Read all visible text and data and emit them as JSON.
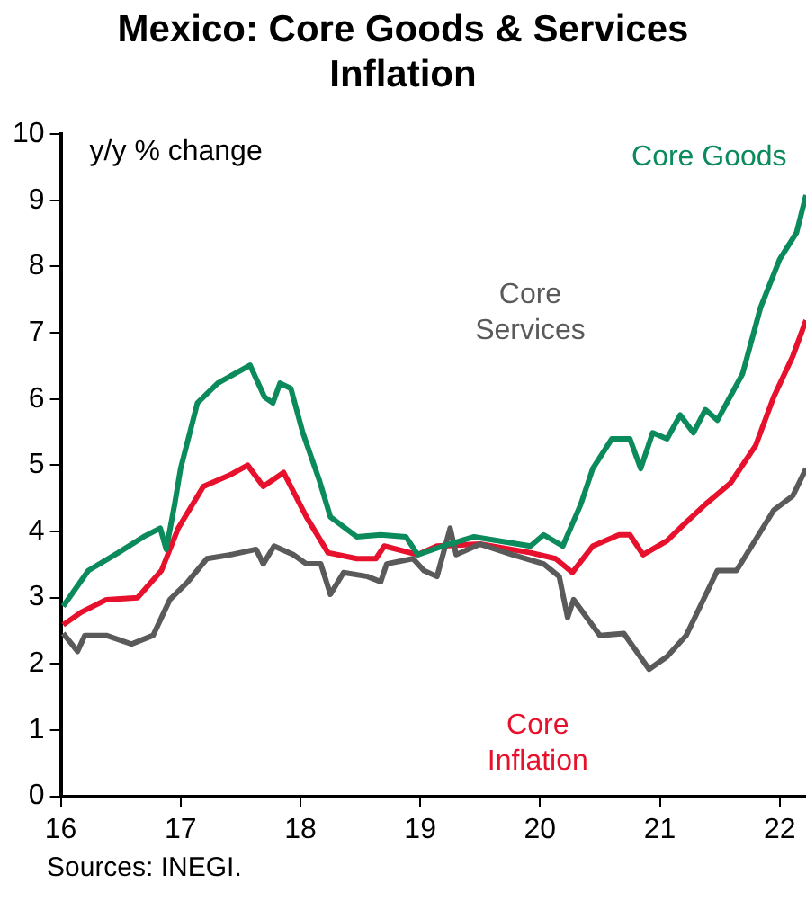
{
  "chart_data": {
    "type": "line",
    "title": "Mexico: Core Goods & Services Inflation",
    "ylabel": "y/y % change",
    "annotations": [
      "Sources: INEGI."
    ],
    "xlim": [
      16,
      22.22
    ],
    "xticks": [
      16,
      17,
      18,
      19,
      20,
      21,
      22
    ],
    "ylim": [
      0,
      10
    ],
    "yticks": [
      0,
      1,
      2,
      3,
      4,
      5,
      6,
      7,
      8,
      9,
      10
    ],
    "grid": false,
    "legend": false,
    "marker": "none",
    "line_style": "solid",
    "series": [
      {
        "name": "Core Goods",
        "color": "#0b8a5c",
        "x": [
          16.02,
          16.23,
          16.48,
          16.69,
          16.83,
          16.88,
          16.95,
          17.0,
          17.14,
          17.31,
          17.58,
          17.7,
          17.77,
          17.83,
          17.92,
          18.02,
          18.16,
          18.25,
          18.47,
          18.67,
          18.88,
          18.98,
          19.19,
          19.45,
          19.92,
          20.03,
          20.19,
          20.34,
          20.44,
          20.6,
          20.75,
          20.84,
          20.94,
          21.06,
          21.17,
          21.28,
          21.38,
          21.48,
          21.69,
          21.84,
          22.0,
          22.14,
          22.22
        ],
        "values": [
          2.87,
          3.41,
          3.68,
          3.92,
          4.05,
          3.73,
          4.41,
          4.95,
          5.94,
          6.24,
          6.51,
          6.03,
          5.94,
          6.24,
          6.16,
          5.49,
          4.76,
          4.22,
          3.92,
          3.95,
          3.92,
          3.65,
          3.78,
          3.92,
          3.78,
          3.95,
          3.78,
          4.41,
          4.95,
          5.4,
          5.4,
          4.95,
          5.49,
          5.4,
          5.76,
          5.49,
          5.84,
          5.68,
          6.38,
          7.38,
          8.11,
          8.51,
          9.08
        ]
      },
      {
        "name": "Core Services",
        "color": "#5a5a5a",
        "x": [
          16.02,
          16.14,
          16.2,
          16.38,
          16.59,
          16.77,
          16.91,
          17.06,
          17.22,
          17.42,
          17.63,
          17.69,
          17.78,
          17.94,
          18.05,
          18.17,
          18.25,
          18.36,
          18.56,
          18.67,
          18.72,
          18.94,
          19.03,
          19.14,
          19.25,
          19.3,
          19.5,
          19.77,
          20.03,
          20.16,
          20.23,
          20.28,
          20.5,
          20.7,
          20.91,
          21.06,
          21.22,
          21.48,
          21.64,
          21.95,
          22.11,
          22.22
        ],
        "values": [
          2.46,
          2.19,
          2.43,
          2.43,
          2.3,
          2.43,
          2.97,
          3.24,
          3.59,
          3.65,
          3.73,
          3.51,
          3.78,
          3.65,
          3.51,
          3.51,
          3.05,
          3.38,
          3.32,
          3.24,
          3.51,
          3.59,
          3.41,
          3.32,
          4.05,
          3.65,
          3.81,
          3.65,
          3.51,
          3.32,
          2.7,
          2.97,
          2.43,
          2.46,
          1.92,
          2.11,
          2.43,
          3.41,
          3.41,
          4.32,
          4.54,
          4.95
        ]
      },
      {
        "name": "Core Inflation",
        "color": "#e8112d",
        "x": [
          16.02,
          16.17,
          16.38,
          16.64,
          16.84,
          16.98,
          17.19,
          17.42,
          17.56,
          17.69,
          17.86,
          18.05,
          18.23,
          18.47,
          18.63,
          18.7,
          18.98,
          19.14,
          19.5,
          19.92,
          20.13,
          20.27,
          20.44,
          20.66,
          20.75,
          20.86,
          21.06,
          21.22,
          21.38,
          21.59,
          21.8,
          21.95,
          22.11,
          22.22
        ],
        "values": [
          2.59,
          2.78,
          2.97,
          3.0,
          3.41,
          4.05,
          4.68,
          4.86,
          5.0,
          4.68,
          4.89,
          4.22,
          3.68,
          3.59,
          3.59,
          3.78,
          3.65,
          3.78,
          3.81,
          3.68,
          3.59,
          3.38,
          3.78,
          3.95,
          3.95,
          3.65,
          3.86,
          4.14,
          4.41,
          4.73,
          5.3,
          6.03,
          6.65,
          7.19
        ]
      }
    ]
  }
}
